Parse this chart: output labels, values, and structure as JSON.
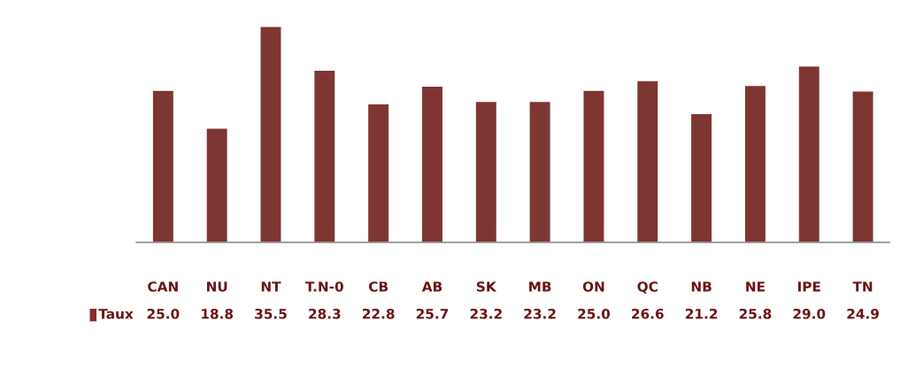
{
  "chart_data": {
    "type": "bar",
    "categories": [
      "CAN",
      "NU",
      "NT",
      "T.N-0",
      "CB",
      "AB",
      "SK",
      "MB",
      "ON",
      "QC",
      "NB",
      "NE",
      "IPE",
      "TN"
    ],
    "series": [
      {
        "name": "Taux",
        "color": "#8b2a26",
        "values": [
          25.0,
          18.8,
          35.5,
          28.3,
          22.8,
          25.7,
          23.2,
          23.2,
          25.0,
          26.6,
          21.2,
          25.8,
          29.0,
          24.9
        ],
        "value_labels": [
          "25.0",
          "18.8",
          "35.5",
          "28.3",
          "22.8",
          "25.7",
          "23.2",
          "23.2",
          "25.0",
          "26.6",
          "21.2",
          "25.8",
          "29.0",
          "24.9"
        ]
      }
    ]
  }
}
